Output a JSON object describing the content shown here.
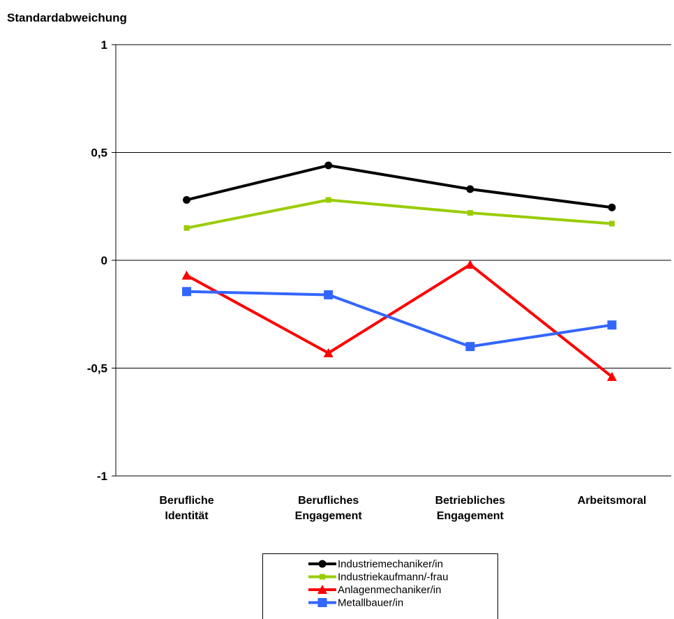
{
  "chart_data": {
    "type": "line",
    "ylabel": "Standardabweichung",
    "ylim": [
      -1,
      1
    ],
    "yticks": [
      1,
      0.5,
      0,
      -0.5,
      -1
    ],
    "ytick_labels": [
      "1",
      "0,5",
      "0",
      "-0,5",
      "-1"
    ],
    "grid": true,
    "legend_position": "bottom",
    "categories": [
      [
        "Berufliche",
        "Identität"
      ],
      [
        "Berufliches",
        "Engagement"
      ],
      [
        "Betriebliches",
        "Engagement"
      ],
      [
        "Arbeitsmoral"
      ]
    ],
    "series": [
      {
        "name": "Industriemechaniker/in",
        "color": "#000000",
        "marker": "circle",
        "values": [
          0.28,
          0.44,
          0.33,
          0.245
        ]
      },
      {
        "name": "Industriekaufmann/-frau",
        "color": "#99cc00",
        "marker": "small-square",
        "values": [
          0.15,
          0.28,
          0.22,
          0.17
        ]
      },
      {
        "name": "Anlagenmechaniker/in",
        "color": "#ff0000",
        "marker": "triangle",
        "values": [
          -0.07,
          -0.43,
          -0.02,
          -0.54
        ]
      },
      {
        "name": "Metallbauer/in",
        "color": "#3366ff",
        "marker": "square",
        "values": [
          -0.145,
          -0.16,
          -0.4,
          -0.3
        ]
      }
    ]
  }
}
